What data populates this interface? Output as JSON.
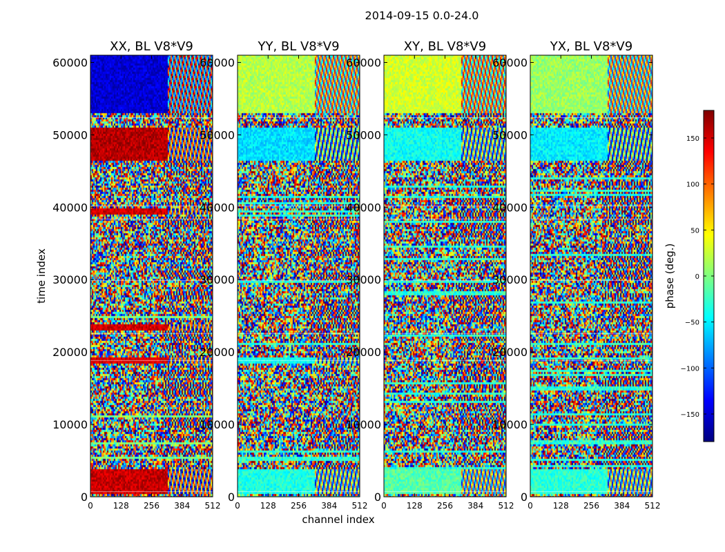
{
  "figure": {
    "suptitle": "2014-09-15 0.0-24.0",
    "xlabel": "channel index",
    "ylabel": "time index"
  },
  "colorbar": {
    "label": "phase (deg.)",
    "range": [
      -180,
      180
    ],
    "ticks": [
      "150",
      "100",
      "50",
      "0",
      "−50",
      "−100",
      "−150"
    ],
    "tick_values": [
      150,
      100,
      50,
      0,
      -50,
      -100,
      -150
    ],
    "colormap": "jet",
    "colors": [
      "#00007f",
      "#0000ff",
      "#007fff",
      "#00ffff",
      "#7fff7f",
      "#ffff00",
      "#ff7f00",
      "#ff0000",
      "#7f0000"
    ]
  },
  "chart_data": [
    {
      "type": "heatmap",
      "title": "XX, BL V8*V9",
      "xlim": [
        0,
        512
      ],
      "ylim": [
        0,
        61000
      ],
      "xticks": [
        "0",
        "128",
        "256",
        "384",
        "512"
      ],
      "yticks": [
        "0",
        "10000",
        "20000",
        "30000",
        "40000",
        "50000",
        "60000"
      ],
      "value": "phase (deg.)",
      "dominant_phase_by_time": [
        {
          "time": [
            500,
            4000
          ],
          "phase_deg": 155
        },
        {
          "time": [
            4000,
            20000
          ],
          "phase_deg": "mixed"
        },
        {
          "time": [
            18500,
            19300
          ],
          "phase_deg": 150
        },
        {
          "time": [
            23200,
            23900
          ],
          "phase_deg": 150
        },
        {
          "time": [
            39000,
            40000
          ],
          "phase_deg": 150
        },
        {
          "time": [
            46500,
            51000
          ],
          "phase_deg": 160
        },
        {
          "time": [
            53000,
            61000
          ],
          "phase_deg": -150
        }
      ]
    },
    {
      "type": "heatmap",
      "title": "YY, BL V8*V9",
      "xlim": [
        0,
        512
      ],
      "ylim": [
        0,
        61000
      ],
      "xticks": [
        "0",
        "128",
        "256",
        "384",
        "512"
      ],
      "yticks": [
        "0",
        "10000",
        "20000",
        "30000",
        "40000",
        "50000",
        "60000"
      ],
      "value": "phase (deg.)",
      "dominant_phase_by_time": [
        {
          "time": [
            500,
            4000
          ],
          "phase_deg": -35
        },
        {
          "time": [
            18500,
            19300
          ],
          "phase_deg": -40
        },
        {
          "time": [
            46500,
            51000
          ],
          "phase_deg": -55
        },
        {
          "time": [
            53000,
            61000
          ],
          "phase_deg": 20
        }
      ]
    },
    {
      "type": "heatmap",
      "title": "XY, BL V8*V9",
      "xlim": [
        0,
        512
      ],
      "ylim": [
        0,
        61000
      ],
      "xticks": [
        "0",
        "128",
        "256",
        "384",
        "512"
      ],
      "yticks": [
        "0",
        "10000",
        "20000",
        "30000",
        "40000",
        "50000",
        "60000"
      ],
      "value": "phase (deg.)",
      "dominant_phase_by_time": [
        {
          "time": [
            500,
            4000
          ],
          "phase_deg": -15
        },
        {
          "time": [
            46500,
            51000
          ],
          "phase_deg": -40
        },
        {
          "time": [
            53000,
            61000
          ],
          "phase_deg": 30
        }
      ]
    },
    {
      "type": "heatmap",
      "title": "YX, BL V8*V9",
      "xlim": [
        0,
        512
      ],
      "ylim": [
        0,
        61000
      ],
      "xticks": [
        "0",
        "128",
        "256",
        "384",
        "512"
      ],
      "yticks": [
        "0",
        "10000",
        "20000",
        "30000",
        "40000",
        "50000",
        "60000"
      ],
      "value": "phase (deg.)",
      "dominant_phase_by_time": [
        {
          "time": [
            500,
            4000
          ],
          "phase_deg": -30
        },
        {
          "time": [
            46500,
            51000
          ],
          "phase_deg": -50
        },
        {
          "time": [
            53000,
            61000
          ],
          "phase_deg": 10
        }
      ]
    }
  ]
}
